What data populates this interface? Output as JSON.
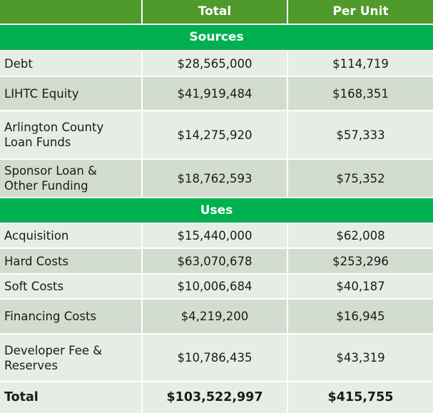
{
  "table": {
    "header": {
      "col1": "",
      "col2": "Total",
      "col3": "Per Unit"
    },
    "sources_label": "Sources",
    "uses_label": "Uses",
    "sources": [
      {
        "label": "Debt",
        "total": "$28,565,000",
        "per_unit": "$114,719"
      },
      {
        "label": "LIHTC Equity",
        "total": "$41,919,484",
        "per_unit": "$168,351"
      },
      {
        "label": "Arlington County Loan Funds",
        "total": "$14,275,920",
        "per_unit": "$57,333"
      },
      {
        "label": "Sponsor Loan & Other Funding",
        "total": "$18,762,593",
        "per_unit": "$75,352"
      }
    ],
    "uses": [
      {
        "label": "Acquisition",
        "total": "$15,440,000",
        "per_unit": "$62,008"
      },
      {
        "label": "Hard Costs",
        "total": "$63,070,678",
        "per_unit": "$253,296"
      },
      {
        "label": "Soft Costs",
        "total": "$10,006,684",
        "per_unit": "$40,187"
      },
      {
        "label": "Financing Costs",
        "total": "$4,219,200",
        "per_unit": "$16,945"
      },
      {
        "label": "Developer Fee & Reserves",
        "total": "$10,786,435",
        "per_unit": "$43,319"
      }
    ],
    "total_row": {
      "label": "Total",
      "total": "$103,522,997",
      "per_unit": "$415,755"
    }
  },
  "colors": {
    "header_bg": "#4f9a2a",
    "section_bg": "#00b050",
    "row_light": "#e6ede4",
    "row_dark": "#d2ddd0"
  }
}
